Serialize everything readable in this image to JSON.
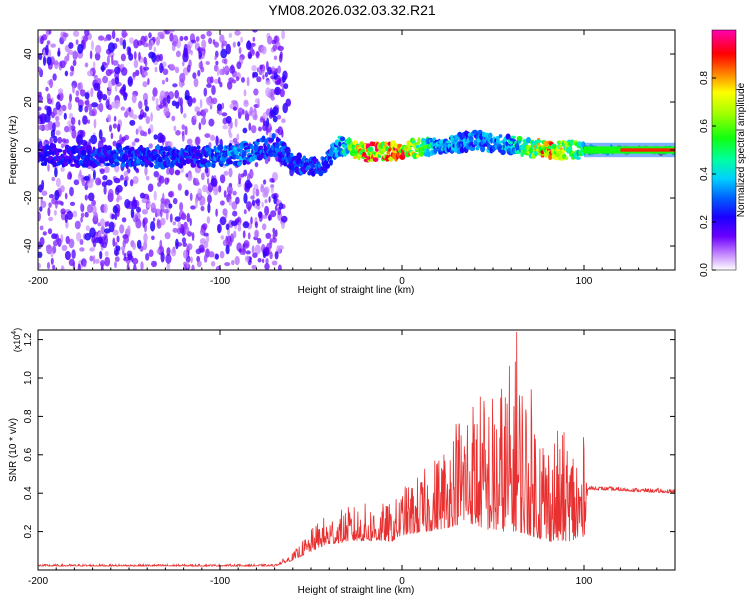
{
  "title": "YM08.2026.032.03.32.R21",
  "chart_data": [
    {
      "type": "heatmap",
      "name": "spectrogram",
      "xlabel": "Height of straight line (km)",
      "ylabel": "Frequency (Hz)",
      "xlim": [
        -200,
        150
      ],
      "ylim": [
        -50,
        50
      ],
      "xticks": [
        -200,
        -100,
        0,
        100
      ],
      "yticks": [
        -40,
        -20,
        0,
        20,
        40
      ],
      "colorbar": {
        "label": "Normalized spectral amplitude",
        "ticks": [
          0.0,
          0.2,
          0.4,
          0.6,
          0.8
        ],
        "tick_labels": [
          "0.0",
          "0.2",
          "0.4",
          "0.6",
          "0.8"
        ],
        "range": [
          0,
          1
        ]
      },
      "ridge": [
        {
          "x": -200,
          "f": -2,
          "amp": 0.22
        },
        {
          "x": -160,
          "f": -3,
          "amp": 0.3
        },
        {
          "x": -120,
          "f": -3,
          "amp": 0.28
        },
        {
          "x": -90,
          "f": -2,
          "amp": 0.35
        },
        {
          "x": -70,
          "f": 2,
          "amp": 0.3
        },
        {
          "x": -60,
          "f": -5,
          "amp": 0.3
        },
        {
          "x": -45,
          "f": -8,
          "amp": 0.3
        },
        {
          "x": -35,
          "f": 2,
          "amp": 0.4
        },
        {
          "x": -20,
          "f": -1,
          "amp": 0.9
        },
        {
          "x": 0,
          "f": 0,
          "amp": 0.9
        },
        {
          "x": 20,
          "f": 2,
          "amp": 0.4
        },
        {
          "x": 40,
          "f": 4,
          "amp": 0.35
        },
        {
          "x": 60,
          "f": 2,
          "amp": 0.4
        },
        {
          "x": 80,
          "f": 0,
          "amp": 0.9
        },
        {
          "x": 100,
          "f": 0,
          "amp": 0.5
        },
        {
          "x": 150,
          "f": 0,
          "amp": 0.85
        }
      ]
    },
    {
      "type": "line",
      "name": "snr",
      "xlabel": "Height of straight line (km)",
      "ylabel": "SNR (10 * v/v)",
      "y_multiplier": "(x10",
      "y_multiplier_exp": "4",
      "y_multiplier_close": ")",
      "xlim": [
        -200,
        150
      ],
      "ylim": [
        0,
        1.25
      ],
      "xticks": [
        -200,
        -100,
        0,
        100
      ],
      "yticks": [
        0.2,
        0.4,
        0.6,
        0.8,
        1.0,
        1.2
      ],
      "ytick_labels": [
        "0.2",
        "0.4",
        "0.6",
        "0.8",
        "1.0",
        "1.2"
      ],
      "color": "#e83030",
      "envelope": [
        {
          "x": -200,
          "base": 0.02,
          "amp": 0.01
        },
        {
          "x": -70,
          "base": 0.02,
          "amp": 0.01
        },
        {
          "x": -60,
          "base": 0.05,
          "amp": 0.04
        },
        {
          "x": -45,
          "base": 0.12,
          "amp": 0.15
        },
        {
          "x": -30,
          "base": 0.15,
          "amp": 0.18
        },
        {
          "x": -20,
          "base": 0.15,
          "amp": 0.2
        },
        {
          "x": -5,
          "base": 0.15,
          "amp": 0.2
        },
        {
          "x": 0,
          "base": 0.18,
          "amp": 0.25
        },
        {
          "x": 15,
          "base": 0.2,
          "amp": 0.35
        },
        {
          "x": 25,
          "base": 0.22,
          "amp": 0.5
        },
        {
          "x": 35,
          "base": 0.25,
          "amp": 0.7
        },
        {
          "x": 50,
          "base": 0.2,
          "amp": 0.75
        },
        {
          "x": 63,
          "base": 0.2,
          "amp": 0.95
        },
        {
          "x": 80,
          "base": 0.15,
          "amp": 0.6
        },
        {
          "x": 100,
          "base": 0.15,
          "amp": 0.55
        },
        {
          "x": 102,
          "base": 0.42,
          "amp": 0.02
        },
        {
          "x": 150,
          "base": 0.4,
          "amp": 0.02
        }
      ],
      "peak": {
        "x": 63,
        "y": 1.24
      }
    }
  ]
}
